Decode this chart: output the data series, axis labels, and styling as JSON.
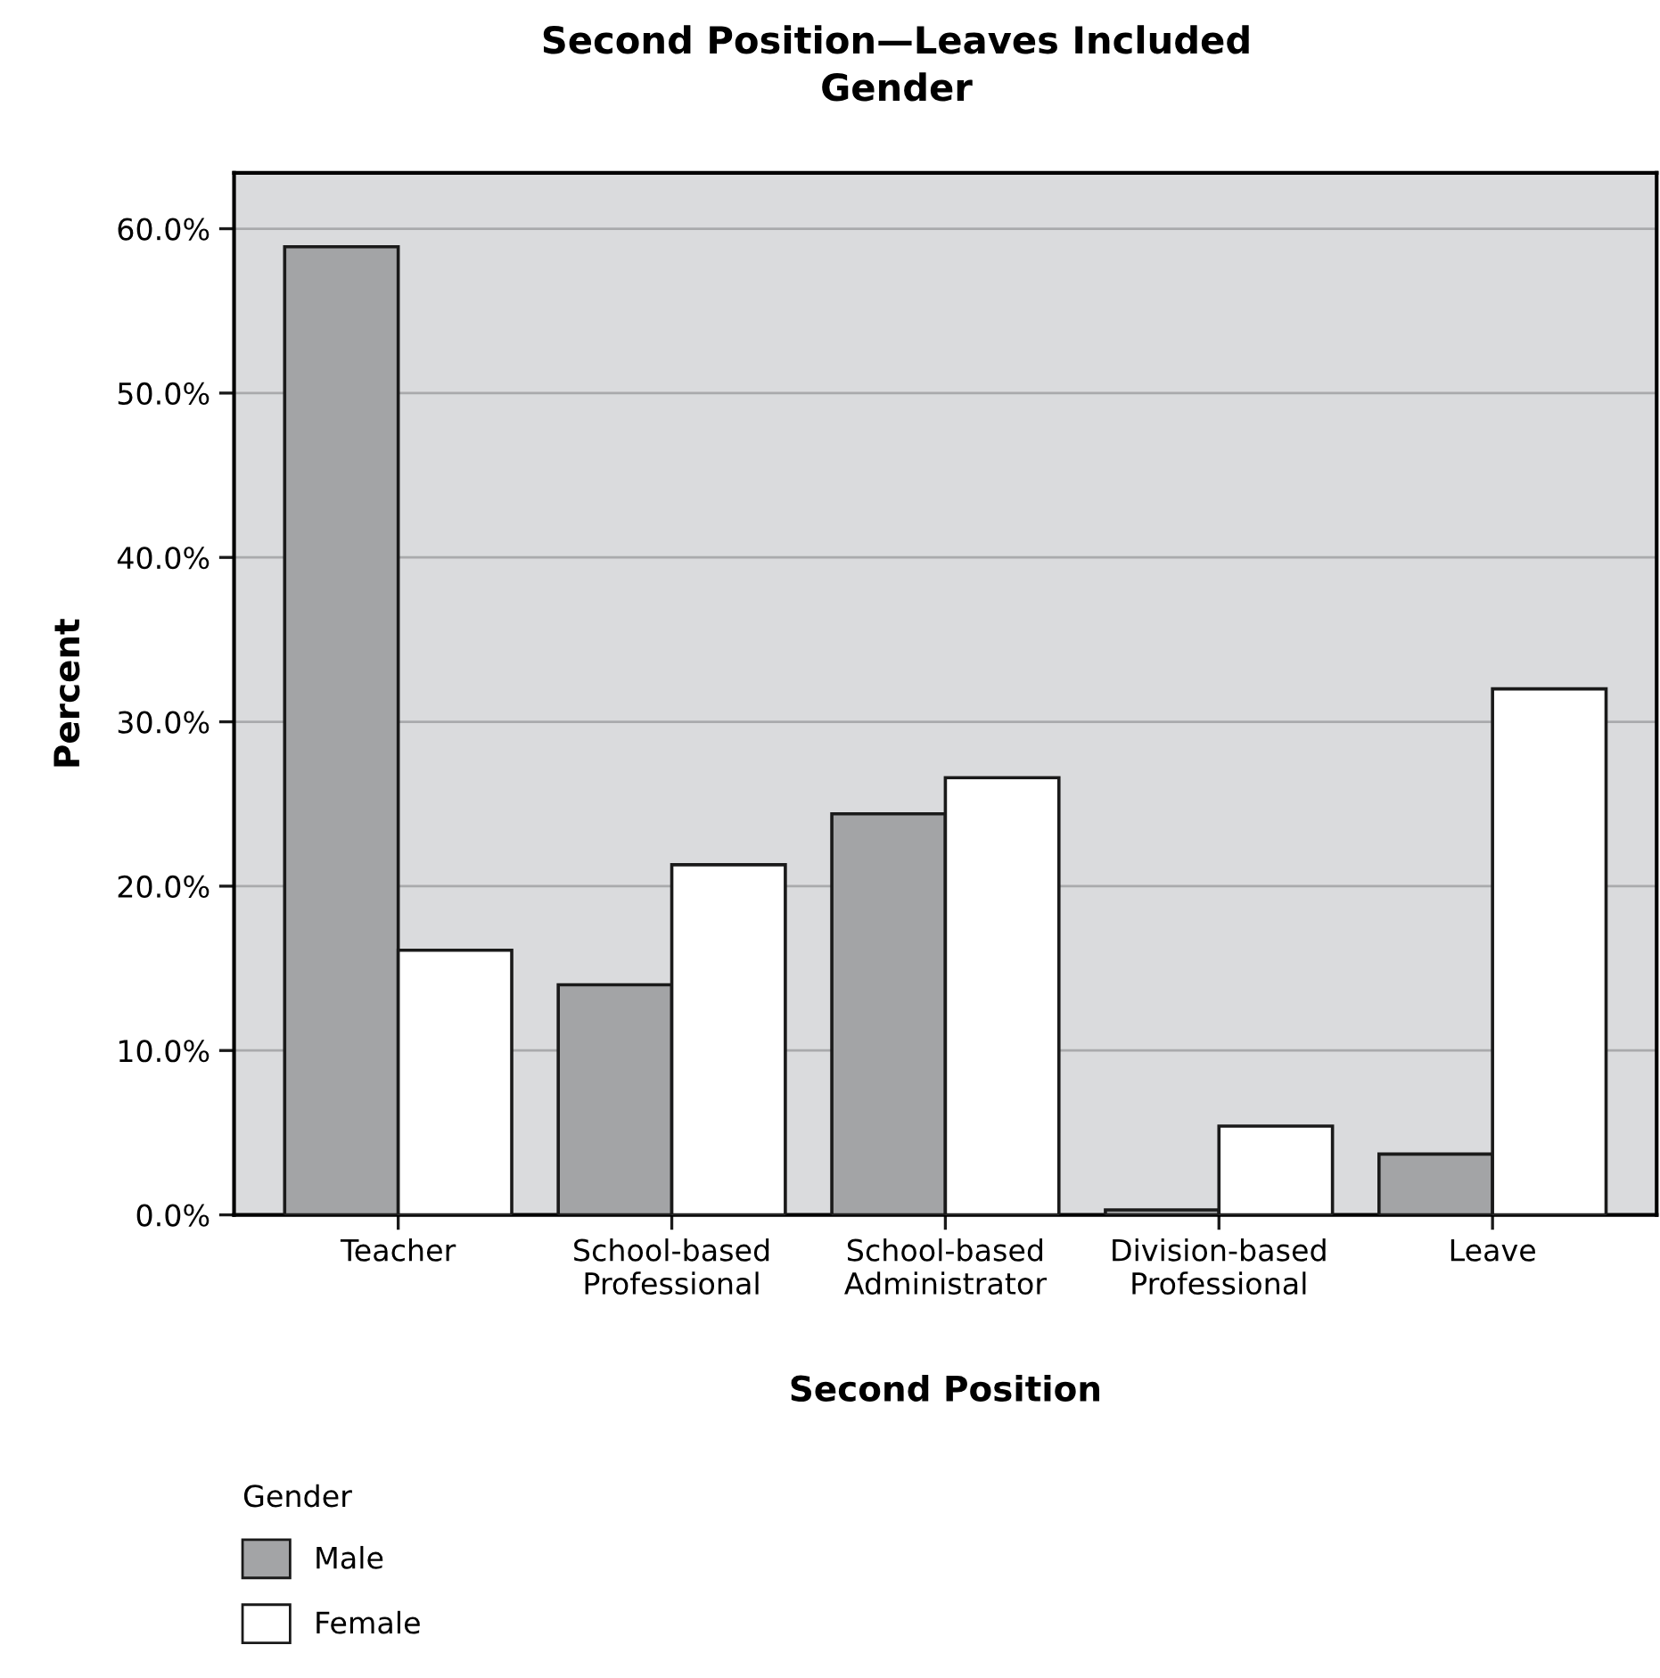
{
  "chart_data": {
    "type": "bar",
    "title": "Second Position—Leaves Included\nGender",
    "xlabel": "Second Position",
    "ylabel": "Percent",
    "legend_title": "Gender",
    "categories": [
      "Teacher",
      "School-based\nProfessional",
      "School-based\nAdministrator",
      "Division-based\nProfessional",
      "Leave"
    ],
    "series": [
      {
        "name": "Male",
        "color": "#a3a4a6",
        "values": [
          58.9,
          14.0,
          24.4,
          0.3,
          3.7
        ]
      },
      {
        "name": "Female",
        "color": "#ffffff",
        "values": [
          16.1,
          21.3,
          26.6,
          5.4,
          32.0
        ]
      }
    ],
    "ylim": [
      0,
      63.4
    ],
    "yticks": [
      {
        "value": 0,
        "label": "0.0%"
      },
      {
        "value": 10,
        "label": "10.0%"
      },
      {
        "value": 20,
        "label": "20.0%"
      },
      {
        "value": 30,
        "label": "30.0%"
      },
      {
        "value": 40,
        "label": "40.0%"
      },
      {
        "value": 50,
        "label": "50.0%"
      },
      {
        "value": 60,
        "label": "60.0%"
      }
    ],
    "grid": "y",
    "legend": "bottom left"
  }
}
